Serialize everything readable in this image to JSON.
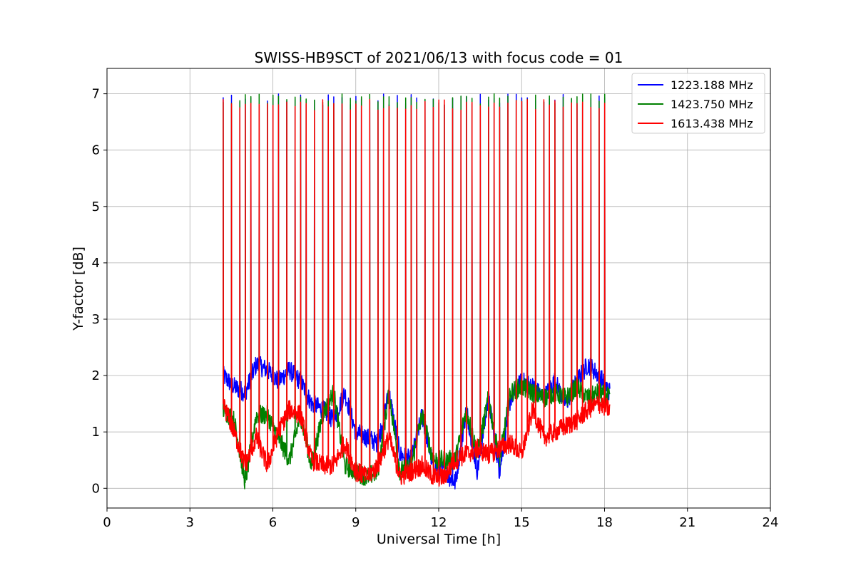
{
  "chart_data": {
    "type": "line",
    "title": "SWISS-HB9SCT of 2021/06/13 with focus code = 01",
    "xlabel": "Universal Time [h]",
    "ylabel": "Y-factor [dB]",
    "xlim": [
      0,
      24
    ],
    "ylim": [
      -0.35,
      7.45
    ],
    "xticks": [
      0,
      3,
      6,
      9,
      12,
      15,
      18,
      21,
      24
    ],
    "yticks": [
      0,
      1,
      2,
      3,
      4,
      5,
      6,
      7
    ],
    "grid": true,
    "legend_position": "top-right",
    "calibration_spike_times_h": [
      4.2,
      4.5,
      4.8,
      5.0,
      5.2,
      5.5,
      5.8,
      6.0,
      6.2,
      6.5,
      6.8,
      7.0,
      7.2,
      7.5,
      7.8,
      8.0,
      8.2,
      8.5,
      8.8,
      9.0,
      9.2,
      9.5,
      9.8,
      10.0,
      10.2,
      10.5,
      10.8,
      11.0,
      11.2,
      11.5,
      11.8,
      12.0,
      12.2,
      12.5,
      12.8,
      13.0,
      13.2,
      13.5,
      13.8,
      14.0,
      14.2,
      14.5,
      14.8,
      15.0,
      15.2,
      15.5,
      15.8,
      16.0,
      16.2,
      16.5,
      16.8,
      17.0,
      17.2,
      17.5,
      17.8,
      18.0
    ],
    "series": [
      {
        "name": "1223.188 MHz",
        "color": "#0000ff",
        "spike_peak_db": 6.9,
        "baseline": {
          "x": [
            4.2,
            4.6,
            5.0,
            5.4,
            5.8,
            6.2,
            6.6,
            7.0,
            7.4,
            7.8,
            8.2,
            8.6,
            9.0,
            9.4,
            9.8,
            10.2,
            10.6,
            11.0,
            11.4,
            11.8,
            12.2,
            12.6,
            13.0,
            13.4,
            13.8,
            14.2,
            14.6,
            15.0,
            15.4,
            15.8,
            16.2,
            16.6,
            17.0,
            17.4,
            17.8,
            18.2
          ],
          "y": [
            2.0,
            1.8,
            1.7,
            2.2,
            2.1,
            1.9,
            2.1,
            1.9,
            1.5,
            1.4,
            1.2,
            1.7,
            1.0,
            0.9,
            0.8,
            1.7,
            0.6,
            0.5,
            1.3,
            0.4,
            0.3,
            0.1,
            1.4,
            0.3,
            1.6,
            0.3,
            1.6,
            1.9,
            1.8,
            1.6,
            1.9,
            1.5,
            1.9,
            2.2,
            2.0,
            1.7
          ]
        }
      },
      {
        "name": "1423.750 MHz",
        "color": "#008000",
        "spike_peak_db": 6.9,
        "baseline": {
          "x": [
            4.2,
            4.6,
            5.0,
            5.4,
            5.8,
            6.2,
            6.6,
            7.0,
            7.4,
            7.8,
            8.2,
            8.6,
            9.0,
            9.4,
            9.8,
            10.2,
            10.6,
            11.0,
            11.4,
            11.8,
            12.2,
            12.6,
            13.0,
            13.4,
            13.8,
            14.2,
            14.6,
            15.0,
            15.4,
            15.8,
            16.2,
            16.6,
            17.0,
            17.4,
            17.8,
            18.2
          ],
          "y": [
            1.4,
            1.2,
            0.1,
            1.3,
            1.3,
            0.9,
            0.5,
            1.3,
            0.4,
            1.3,
            1.7,
            0.4,
            0.3,
            0.2,
            0.3,
            1.7,
            0.3,
            0.4,
            1.3,
            0.5,
            0.5,
            0.5,
            1.4,
            0.6,
            1.6,
            0.5,
            1.7,
            1.8,
            1.7,
            1.6,
            1.7,
            1.6,
            1.8,
            1.6,
            1.7,
            1.6
          ]
        }
      },
      {
        "name": "1613.438 MHz",
        "color": "#ff0000",
        "spike_peak_db": 6.8,
        "baseline": {
          "x": [
            4.2,
            4.6,
            5.0,
            5.4,
            5.8,
            6.2,
            6.6,
            7.0,
            7.4,
            7.8,
            8.2,
            8.6,
            9.0,
            9.4,
            9.8,
            10.2,
            10.6,
            11.0,
            11.4,
            11.8,
            12.2,
            12.6,
            13.0,
            13.4,
            13.8,
            14.2,
            14.6,
            15.0,
            15.4,
            15.8,
            16.2,
            16.6,
            17.0,
            17.4,
            17.8,
            18.2
          ],
          "y": [
            1.5,
            1.0,
            0.4,
            0.9,
            0.4,
            1.0,
            1.4,
            1.3,
            0.5,
            0.4,
            0.4,
            0.8,
            0.3,
            0.2,
            0.4,
            0.9,
            0.2,
            0.3,
            0.4,
            0.2,
            0.2,
            0.5,
            0.6,
            0.7,
            0.6,
            0.7,
            0.8,
            0.6,
            1.4,
            0.9,
            1.0,
            1.1,
            1.2,
            1.4,
            1.5,
            1.4
          ]
        }
      }
    ]
  }
}
